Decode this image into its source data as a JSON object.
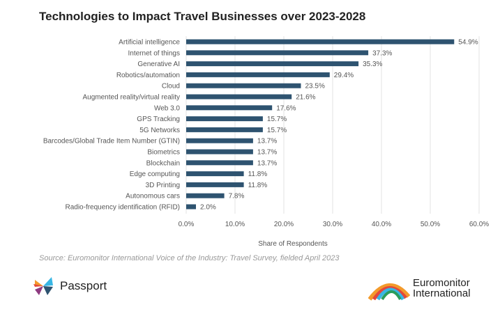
{
  "chart_data": {
    "type": "bar",
    "orientation": "horizontal",
    "title": "Technologies to Impact Travel Businesses over 2023-2028",
    "xlabel": "Share of Respondents",
    "ylabel": "",
    "xlim": [
      0,
      60
    ],
    "xticks": [
      "0.0%",
      "10.0%",
      "20.0%",
      "30.0%",
      "40.0%",
      "50.0%",
      "60.0%"
    ],
    "grid": "vertical",
    "bar_color": "#2e5370",
    "categories": [
      "Artificial intelligence",
      "Internet of things",
      "Generative AI",
      "Robotics/automation",
      "Cloud",
      "Augmented reality/virtual reality",
      "Web 3.0",
      "GPS Tracking",
      "5G Networks",
      "Barcodes/Global Trade Item Number (GTIN)",
      "Biometrics",
      "Blockchain",
      "Edge computing",
      "3D Printing",
      "Autonomous cars",
      "Radio-frequency identification (RFID)"
    ],
    "values": [
      54.9,
      37.3,
      35.3,
      29.4,
      23.5,
      21.6,
      17.6,
      15.7,
      15.7,
      13.7,
      13.7,
      13.7,
      11.8,
      11.8,
      7.8,
      2.0
    ],
    "data_labels": [
      "54.9%",
      "37.3%",
      "35.3%",
      "29.4%",
      "23.5%",
      "21.6%",
      "17.6%",
      "15.7%",
      "15.7%",
      "13.7%",
      "13.7%",
      "13.7%",
      "11.8%",
      "11.8%",
      "7.8%",
      "2.0%"
    ]
  },
  "source": "Source: Euromonitor International Voice of the Industry: Travel Survey, fielded April 2023",
  "logos": {
    "passport": "Passport",
    "euromonitor_line1": "Euromonitor",
    "euromonitor_line2": "International"
  }
}
